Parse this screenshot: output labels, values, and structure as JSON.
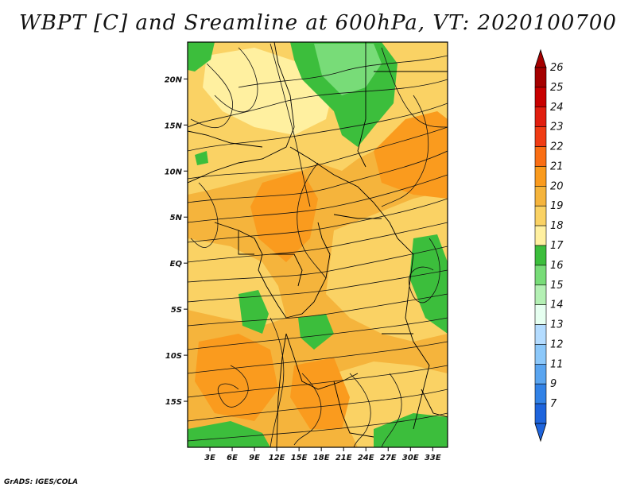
{
  "title": "WBPT [C] and Sreamline at 600hPa, VT: 2020100700",
  "footer": "GrADS: IGES/COLA",
  "map": {
    "lon_range": [
      0,
      35
    ],
    "lat_range": [
      -20,
      24
    ],
    "lat_ticks": [
      {
        "value": 20,
        "label": "20N"
      },
      {
        "value": 15,
        "label": "15N"
      },
      {
        "value": 10,
        "label": "10N"
      },
      {
        "value": 5,
        "label": "5N"
      },
      {
        "value": 0,
        "label": "EQ"
      },
      {
        "value": -5,
        "label": "5S"
      },
      {
        "value": -10,
        "label": "10S"
      },
      {
        "value": -15,
        "label": "15S"
      }
    ],
    "lon_ticks": [
      {
        "value": 3,
        "label": "3E"
      },
      {
        "value": 6,
        "label": "6E"
      },
      {
        "value": 9,
        "label": "9E"
      },
      {
        "value": 12,
        "label": "12E"
      },
      {
        "value": 15,
        "label": "15E"
      },
      {
        "value": 18,
        "label": "18E"
      },
      {
        "value": 21,
        "label": "21E"
      },
      {
        "value": 24,
        "label": "24E"
      },
      {
        "value": 27,
        "label": "27E"
      },
      {
        "value": 30,
        "label": "30E"
      },
      {
        "value": 33,
        "label": "33E"
      }
    ]
  },
  "colorbar": {
    "levels": [
      {
        "label": "26",
        "color": "#a50000"
      },
      {
        "label": "25",
        "color": "#c80000"
      },
      {
        "label": "24",
        "color": "#e11e0f"
      },
      {
        "label": "23",
        "color": "#f03c14"
      },
      {
        "label": "22",
        "color": "#fa6e14"
      },
      {
        "label": "21",
        "color": "#fa9b1e"
      },
      {
        "label": "20",
        "color": "#f5b43c"
      },
      {
        "label": "19",
        "color": "#fad264"
      },
      {
        "label": "18",
        "color": "#fff0a0"
      },
      {
        "label": "17",
        "color": "#3cbe3c"
      },
      {
        "label": "16",
        "color": "#78dc78"
      },
      {
        "label": "15",
        "color": "#b4f0b4"
      },
      {
        "label": "14",
        "color": "#e6fff0"
      },
      {
        "label": "13",
        "color": "#b4dcff"
      },
      {
        "label": "12",
        "color": "#8cc8fa"
      },
      {
        "label": "11",
        "color": "#5aa5f0"
      },
      {
        "label": "9",
        "color": "#3282e6"
      },
      {
        "label": "7",
        "color": "#1e64dc"
      }
    ],
    "top_arrow_color": "#a50000",
    "bottom_arrow_color": "#1e64dc"
  }
}
